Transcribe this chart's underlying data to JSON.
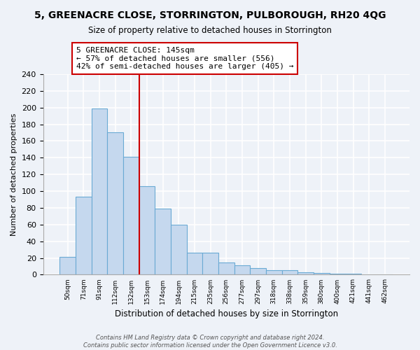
{
  "title": "5, GREENACRE CLOSE, STORRINGTON, PULBOROUGH, RH20 4QG",
  "subtitle": "Size of property relative to detached houses in Storrington",
  "xlabel": "Distribution of detached houses by size in Storrington",
  "ylabel": "Number of detached properties",
  "bar_labels": [
    "50sqm",
    "71sqm",
    "91sqm",
    "112sqm",
    "132sqm",
    "153sqm",
    "174sqm",
    "194sqm",
    "215sqm",
    "235sqm",
    "256sqm",
    "277sqm",
    "297sqm",
    "318sqm",
    "338sqm",
    "359sqm",
    "380sqm",
    "400sqm",
    "421sqm",
    "441sqm",
    "462sqm"
  ],
  "bar_values": [
    21,
    93,
    199,
    170,
    141,
    106,
    79,
    60,
    26,
    26,
    15,
    11,
    8,
    5,
    5,
    3,
    2,
    1,
    1,
    0,
    0
  ],
  "bar_color": "#c5d8ee",
  "bar_edge_color": "#6aaad4",
  "vline_x": 4.5,
  "vline_color": "#cc0000",
  "annotation_title": "5 GREENACRE CLOSE: 145sqm",
  "annotation_line1": "← 57% of detached houses are smaller (556)",
  "annotation_line2": "42% of semi-detached houses are larger (405) →",
  "annotation_box_color": "white",
  "annotation_box_edge": "#cc0000",
  "ylim": [
    0,
    240
  ],
  "yticks": [
    0,
    20,
    40,
    60,
    80,
    100,
    120,
    140,
    160,
    180,
    200,
    220,
    240
  ],
  "footer1": "Contains HM Land Registry data © Crown copyright and database right 2024.",
  "footer2": "Contains public sector information licensed under the Open Government Licence v3.0.",
  "bg_color": "#eef2f8",
  "grid_color": "#d8dfe8"
}
